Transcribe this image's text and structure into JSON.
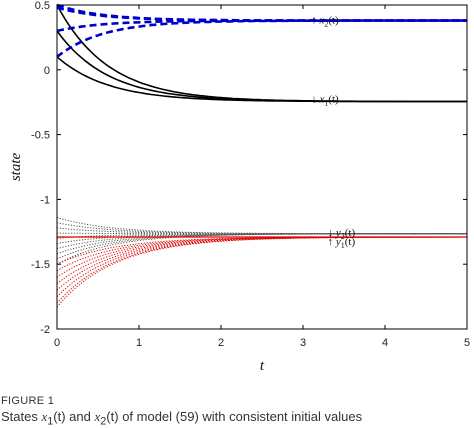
{
  "caption": {
    "label": "FIGURE 1",
    "text_before": "States ",
    "x1_symbol": "x",
    "x1_sub": "1",
    "x1_arg": "(t)",
    "middle": " and ",
    "x2_symbol": "x",
    "x2_sub": "2",
    "x2_arg": "(t)",
    "text_after": " of model (59) with consistent initial values"
  },
  "colors": {
    "x1": "#000000",
    "x2": "#0000cc",
    "y1": "#e00000",
    "y2": "#555555",
    "axis": "#000000"
  },
  "chart_data": {
    "type": "line",
    "xlabel": "t",
    "ylabel": "state",
    "xlim": [
      0,
      5
    ],
    "ylim": [
      -2,
      0.5
    ],
    "xticks": [
      "0",
      "1",
      "2",
      "3",
      "4",
      "5"
    ],
    "yticks": [
      "-2",
      "-1.5",
      "-1",
      "-0.5",
      "0",
      "0.5"
    ],
    "grid": false,
    "annotations": [
      {
        "arrow": "↑",
        "sym": "x",
        "sub": "2",
        "arg": "(t)",
        "x": 3.1,
        "y": 0.39
      },
      {
        "arrow": "↓",
        "sym": "x",
        "sub": "1",
        "arg": "(t)",
        "x": 3.1,
        "y": -0.22
      },
      {
        "arrow": "↓",
        "sym": "y",
        "sub": "2",
        "arg": "(t)",
        "x": 3.3,
        "y": -1.25
      },
      {
        "arrow": "↑",
        "sym": "y",
        "sub": "1",
        "arg": "(t)",
        "x": 3.3,
        "y": -1.32
      }
    ],
    "series": [
      {
        "group": "x1",
        "style": "solid",
        "y0": 0.5,
        "final": -0.245,
        "rate": 1.6
      },
      {
        "group": "x1",
        "style": "solid",
        "y0": 0.3,
        "final": -0.245,
        "rate": 1.6
      },
      {
        "group": "x1",
        "style": "solid",
        "y0": 0.1,
        "final": -0.245,
        "rate": 1.6
      },
      {
        "group": "x2",
        "style": "dashed",
        "y0": 0.5,
        "final": 0.38,
        "rate": 1.8
      },
      {
        "group": "x2",
        "style": "dashed",
        "y0": 0.48,
        "final": 0.38,
        "rate": 1.8
      },
      {
        "group": "x2",
        "style": "dashed",
        "y0": 0.3,
        "final": 0.38,
        "rate": 1.8
      },
      {
        "group": "x2",
        "style": "dashed",
        "y0": 0.1,
        "final": 0.38,
        "rate": 1.8
      },
      {
        "group": "y2",
        "style": "dotted",
        "y0": -1.14,
        "final": -1.265,
        "rate": 1.5
      },
      {
        "group": "y2",
        "style": "dotted",
        "y0": -1.18,
        "final": -1.265,
        "rate": 1.5
      },
      {
        "group": "y2",
        "style": "dotted",
        "y0": -1.22,
        "final": -1.265,
        "rate": 1.5
      },
      {
        "group": "y2",
        "style": "dotted",
        "y0": -1.26,
        "final": -1.265,
        "rate": 1.5
      },
      {
        "group": "y2",
        "style": "dotted",
        "y0": -1.3,
        "final": -1.265,
        "rate": 1.5
      },
      {
        "group": "y2",
        "style": "dotted",
        "y0": -1.34,
        "final": -1.265,
        "rate": 1.5
      },
      {
        "group": "y2",
        "style": "dotted",
        "y0": -1.38,
        "final": -1.265,
        "rate": 1.5
      },
      {
        "group": "y2",
        "style": "dotted",
        "y0": -1.42,
        "final": -1.265,
        "rate": 1.5
      },
      {
        "group": "y2",
        "style": "dotted",
        "y0": -1.46,
        "final": -1.265,
        "rate": 1.5
      },
      {
        "group": "y2",
        "style": "dotted",
        "y0": -1.5,
        "final": -1.265,
        "rate": 1.5
      },
      {
        "group": "y1",
        "style": "solid",
        "y0": -1.29,
        "final": -1.29,
        "rate": 1.5
      },
      {
        "group": "y1",
        "style": "dotted",
        "y0": -1.5,
        "final": -1.29,
        "rate": 1.4
      },
      {
        "group": "y1",
        "style": "dotted",
        "y0": -1.55,
        "final": -1.29,
        "rate": 1.4
      },
      {
        "group": "y1",
        "style": "dotted",
        "y0": -1.6,
        "final": -1.29,
        "rate": 1.4
      },
      {
        "group": "y1",
        "style": "dotted",
        "y0": -1.65,
        "final": -1.29,
        "rate": 1.4
      },
      {
        "group": "y1",
        "style": "dotted",
        "y0": -1.7,
        "final": -1.29,
        "rate": 1.4
      },
      {
        "group": "y1",
        "style": "dotted",
        "y0": -1.75,
        "final": -1.29,
        "rate": 1.4
      },
      {
        "group": "y1",
        "style": "dotted",
        "y0": -1.8,
        "final": -1.29,
        "rate": 1.4
      },
      {
        "group": "y1",
        "style": "dotted",
        "y0": -1.83,
        "final": -1.29,
        "rate": 1.4
      }
    ]
  }
}
